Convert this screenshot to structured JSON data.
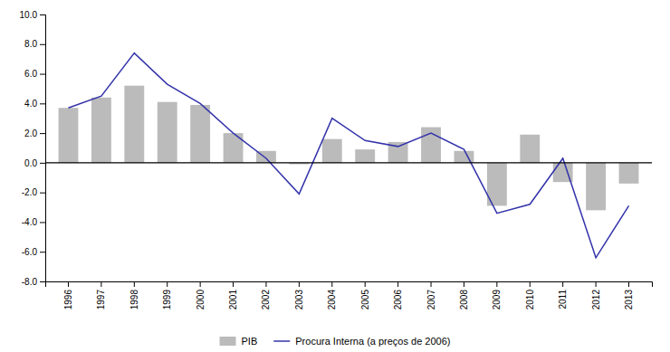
{
  "chart_data": {
    "type": "bar",
    "categories": [
      "1996",
      "1997",
      "1998",
      "1999",
      "2000",
      "2001",
      "2002",
      "2003",
      "2004",
      "2005",
      "2006",
      "2007",
      "2008",
      "2009",
      "2010",
      "2011",
      "2012",
      "2013"
    ],
    "series": [
      {
        "name": "PIB",
        "type": "bar",
        "color": "#bbbbbb",
        "values": [
          3.7,
          4.4,
          5.2,
          4.1,
          3.9,
          2.0,
          0.8,
          -0.1,
          1.6,
          0.9,
          1.4,
          2.4,
          0.8,
          -2.9,
          1.9,
          -1.3,
          -3.2,
          -1.4
        ]
      },
      {
        "name": "Procura Interna (a preços de 2006)",
        "type": "line",
        "color": "#3333aa",
        "values": [
          3.7,
          4.5,
          7.4,
          5.3,
          4.0,
          2.0,
          0.3,
          -2.1,
          3.0,
          1.5,
          1.1,
          2.0,
          0.9,
          -3.4,
          -2.8,
          0.3,
          -6.4,
          -2.9
        ]
      }
    ],
    "ylim": [
      -8.0,
      10.0
    ],
    "yticks": [
      {
        "value": -8.0,
        "label": "-8.0"
      },
      {
        "value": -6.0,
        "label": "-6.0"
      },
      {
        "value": -4.0,
        "label": "-4.0"
      },
      {
        "value": -2.0,
        "label": "-2.0"
      },
      {
        "value": 0.0,
        "label": "0.0"
      },
      {
        "value": 2.0,
        "label": "2.0"
      },
      {
        "value": 4.0,
        "label": "4.0"
      },
      {
        "value": 6.0,
        "label": "6.0"
      },
      {
        "value": 8.0,
        "label": "8.0"
      },
      {
        "value": 10.0,
        "label": "10.0"
      }
    ],
    "grid": false,
    "legend": "bottom"
  }
}
